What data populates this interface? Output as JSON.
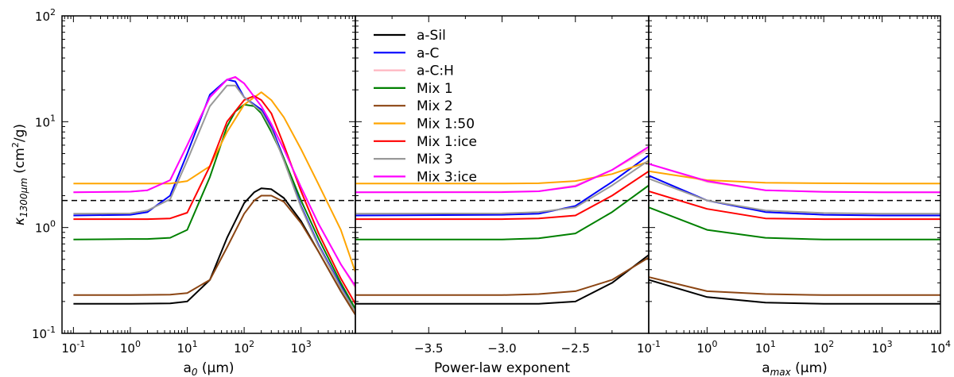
{
  "chart_data": [
    {
      "type": "line",
      "panel": "left",
      "xscale": "log",
      "yscale": "log",
      "xlim": [
        0.063,
        9000
      ],
      "ylim": [
        0.1,
        100
      ],
      "xlabel": "a",
      "xlabel_sub": "0",
      "xlabel_unit": " (μm)",
      "ylabel": "κ",
      "ylabel_sub": "1300μm",
      "ylabel_unit": " (cm",
      "ylabel_sup": "2",
      "ylabel_tail": "/g)",
      "xticks": [
        {
          "value": 0.1,
          "base": "10",
          "exp": "-1"
        },
        {
          "value": 1,
          "base": "10",
          "exp": "0"
        },
        {
          "value": 10,
          "base": "10",
          "exp": "1"
        },
        {
          "value": 100,
          "base": "10",
          "exp": "2"
        },
        {
          "value": 1000,
          "base": "10",
          "exp": "3"
        }
      ],
      "yticks": [
        {
          "value": 0.1,
          "base": "10",
          "exp": "-1"
        },
        {
          "value": 1,
          "base": "10",
          "exp": "0"
        },
        {
          "value": 10,
          "base": "10",
          "exp": "1"
        },
        {
          "value": 100,
          "base": "10",
          "exp": "2"
        }
      ],
      "reference_line": {
        "y": 1.8,
        "style": "dashed"
      },
      "series": [
        {
          "name": "a-Sil",
          "color": "#000000",
          "x": [
            0.1,
            1,
            5,
            10,
            25,
            50,
            100,
            150,
            200,
            300,
            500,
            1000,
            2000,
            5000,
            9000
          ],
          "y": [
            0.19,
            0.19,
            0.192,
            0.2,
            0.32,
            0.8,
            1.7,
            2.15,
            2.35,
            2.3,
            1.9,
            1.15,
            0.6,
            0.25,
            0.15
          ]
        },
        {
          "name": "a-C",
          "color": "#0000ff",
          "x": [
            0.1,
            1,
            2,
            5,
            10,
            25,
            50,
            70,
            100,
            200,
            300,
            500,
            1000,
            2000,
            5000,
            9000
          ],
          "y": [
            1.3,
            1.32,
            1.4,
            2.0,
            5.0,
            18.0,
            25.0,
            24.0,
            17.0,
            13.0,
            9.0,
            4.5,
            1.6,
            0.7,
            0.28,
            0.17
          ]
        },
        {
          "name": "a-C:H",
          "color": "#ffb6c1",
          "x": [
            0.1,
            1,
            2,
            5,
            10,
            25,
            50,
            70,
            100,
            200,
            300,
            500,
            1000,
            2000,
            5000,
            9000
          ],
          "y": [
            2.15,
            2.18,
            2.25,
            2.8,
            6.0,
            17.0,
            25.0,
            26.0,
            23.0,
            14.0,
            9.5,
            5.5,
            2.4,
            1.1,
            0.45,
            0.27
          ]
        },
        {
          "name": "Mix 1",
          "color": "#008000",
          "x": [
            0.1,
            1,
            2,
            5,
            10,
            25,
            50,
            70,
            100,
            150,
            200,
            300,
            500,
            1000,
            2000,
            5000,
            9000
          ],
          "y": [
            0.77,
            0.78,
            0.78,
            0.8,
            0.95,
            3.0,
            9.0,
            12.5,
            14.5,
            14.0,
            12.0,
            8.0,
            4.5,
            1.8,
            0.8,
            0.3,
            0.17
          ]
        },
        {
          "name": "Mix 2",
          "color": "#8b4513",
          "x": [
            0.1,
            1,
            5,
            10,
            25,
            50,
            100,
            150,
            200,
            300,
            500,
            1000,
            2000,
            5000,
            9000
          ],
          "y": [
            0.23,
            0.23,
            0.232,
            0.24,
            0.32,
            0.65,
            1.35,
            1.8,
            2.0,
            2.0,
            1.75,
            1.1,
            0.6,
            0.25,
            0.15
          ]
        },
        {
          "name": "Mix 1:50",
          "color": "#ffa500",
          "x": [
            0.1,
            1,
            2,
            5,
            10,
            25,
            50,
            100,
            200,
            300,
            500,
            1000,
            2000,
            5000,
            9000
          ],
          "y": [
            2.6,
            2.6,
            2.6,
            2.6,
            2.75,
            3.8,
            8.0,
            14.5,
            19.0,
            16.0,
            11.0,
            5.5,
            2.6,
            0.95,
            0.38
          ]
        },
        {
          "name": "Mix 1:ice",
          "color": "#ff0000",
          "x": [
            0.1,
            1,
            2,
            5,
            10,
            25,
            50,
            100,
            150,
            200,
            300,
            500,
            1000,
            2000,
            5000,
            9000
          ],
          "y": [
            1.2,
            1.2,
            1.2,
            1.22,
            1.38,
            3.8,
            10.0,
            16.0,
            17.5,
            16.0,
            12.0,
            6.0,
            2.2,
            0.9,
            0.33,
            0.19
          ]
        },
        {
          "name": "Mix 3",
          "color": "#999999",
          "x": [
            0.1,
            1,
            2,
            5,
            10,
            25,
            50,
            70,
            100,
            200,
            300,
            500,
            1000,
            2000,
            5000,
            9000
          ],
          "y": [
            1.35,
            1.36,
            1.45,
            1.85,
            4.3,
            14.0,
            22.0,
            22.0,
            17.0,
            12.5,
            8.5,
            4.3,
            1.55,
            0.68,
            0.27,
            0.16
          ]
        },
        {
          "name": "Mix 3:ice",
          "color": "#ff00ff",
          "x": [
            0.1,
            1,
            2,
            5,
            10,
            25,
            50,
            70,
            100,
            200,
            300,
            500,
            1000,
            2000,
            5000,
            9000
          ],
          "y": [
            2.15,
            2.18,
            2.25,
            2.8,
            6.0,
            17.0,
            25.0,
            26.5,
            23.0,
            14.0,
            9.5,
            5.5,
            2.4,
            1.1,
            0.45,
            0.28
          ]
        }
      ]
    },
    {
      "type": "line",
      "panel": "middle",
      "xscale": "linear",
      "yscale": "log",
      "xlim": [
        -4.0,
        -2.0
      ],
      "ylim": [
        0.1,
        100
      ],
      "xlabel": "Power-law exponent",
      "xticks": [
        {
          "value": -3.5,
          "label": "−3.5"
        },
        {
          "value": -3.0,
          "label": "−3.0"
        },
        {
          "value": -2.5,
          "label": "−2.5"
        }
      ],
      "reference_line": {
        "y": 1.8,
        "style": "dashed"
      },
      "legend": {
        "position": "top-left"
      },
      "series": [
        {
          "name": "a-Sil",
          "color": "#000000",
          "x": [
            -4.0,
            -3.0,
            -2.75,
            -2.5,
            -2.25,
            -2.0
          ],
          "y": [
            0.19,
            0.19,
            0.19,
            0.2,
            0.3,
            0.55
          ]
        },
        {
          "name": "a-C",
          "color": "#0000ff",
          "x": [
            -4.0,
            -3.0,
            -2.75,
            -2.5,
            -2.25,
            -2.0
          ],
          "y": [
            1.3,
            1.32,
            1.35,
            1.6,
            2.7,
            4.8
          ]
        },
        {
          "name": "a-C:H",
          "color": "#ffb6c1",
          "x": [
            -4.0,
            -3.0,
            -2.75,
            -2.5,
            -2.25,
            -2.0
          ],
          "y": [
            2.15,
            2.18,
            2.2,
            2.5,
            3.5,
            5.5
          ]
        },
        {
          "name": "Mix 1",
          "color": "#008000",
          "x": [
            -4.0,
            -3.0,
            -2.75,
            -2.5,
            -2.25,
            -2.0
          ],
          "y": [
            0.77,
            0.77,
            0.79,
            0.88,
            1.4,
            2.5
          ]
        },
        {
          "name": "Mix 2",
          "color": "#8b4513",
          "x": [
            -4.0,
            -3.0,
            -2.75,
            -2.5,
            -2.25,
            -2.0
          ],
          "y": [
            0.23,
            0.23,
            0.235,
            0.25,
            0.32,
            0.52
          ]
        },
        {
          "name": "Mix 1:50",
          "color": "#ffa500",
          "x": [
            -4.0,
            -3.0,
            -2.75,
            -2.5,
            -2.25,
            -2.0
          ],
          "y": [
            2.6,
            2.6,
            2.62,
            2.75,
            3.2,
            4.2
          ]
        },
        {
          "name": "Mix 1:ice",
          "color": "#ff0000",
          "x": [
            -4.0,
            -3.0,
            -2.75,
            -2.5,
            -2.25,
            -2.0
          ],
          "y": [
            1.2,
            1.2,
            1.22,
            1.3,
            2.0,
            3.4
          ]
        },
        {
          "name": "Mix 3",
          "color": "#999999",
          "x": [
            -4.0,
            -3.0,
            -2.75,
            -2.5,
            -2.25,
            -2.0
          ],
          "y": [
            1.35,
            1.36,
            1.4,
            1.55,
            2.5,
            4.3
          ]
        },
        {
          "name": "Mix 3:ice",
          "color": "#ff00ff",
          "x": [
            -4.0,
            -3.0,
            -2.75,
            -2.5,
            -2.25,
            -2.0
          ],
          "y": [
            2.15,
            2.16,
            2.2,
            2.45,
            3.5,
            5.8
          ]
        }
      ]
    },
    {
      "type": "line",
      "panel": "right",
      "xscale": "log",
      "yscale": "log",
      "xlim": [
        0.1,
        10000
      ],
      "ylim": [
        0.1,
        100
      ],
      "xlabel": "a",
      "xlabel_sub": "max",
      "xlabel_unit": " (μm)",
      "xticks": [
        {
          "value": 0.1,
          "base": "10",
          "exp": "-1"
        },
        {
          "value": 1,
          "base": "10",
          "exp": "0"
        },
        {
          "value": 10,
          "base": "10",
          "exp": "1"
        },
        {
          "value": 100,
          "base": "10",
          "exp": "2"
        },
        {
          "value": 1000,
          "base": "10",
          "exp": "3"
        },
        {
          "value": 10000,
          "base": "10",
          "exp": "4"
        }
      ],
      "reference_line": {
        "y": 1.8,
        "style": "dashed"
      },
      "series": [
        {
          "name": "a-Sil",
          "color": "#000000",
          "x": [
            0.1,
            1,
            10,
            100,
            1000,
            10000
          ],
          "y": [
            0.32,
            0.22,
            0.195,
            0.19,
            0.19,
            0.19
          ]
        },
        {
          "name": "a-C",
          "color": "#0000ff",
          "x": [
            0.1,
            1,
            10,
            100,
            1000,
            10000
          ],
          "y": [
            3.1,
            1.8,
            1.4,
            1.32,
            1.3,
            1.3
          ]
        },
        {
          "name": "a-C:H",
          "color": "#ffb6c1",
          "x": [
            0.1,
            1,
            10,
            100,
            1000,
            10000
          ],
          "y": [
            4.0,
            2.7,
            2.25,
            2.18,
            2.15,
            2.15
          ]
        },
        {
          "name": "Mix 1",
          "color": "#008000",
          "x": [
            0.1,
            1,
            10,
            100,
            1000,
            10000
          ],
          "y": [
            1.55,
            0.95,
            0.8,
            0.77,
            0.77,
            0.77
          ]
        },
        {
          "name": "Mix 2",
          "color": "#8b4513",
          "x": [
            0.1,
            1,
            10,
            100,
            1000,
            10000
          ],
          "y": [
            0.34,
            0.25,
            0.235,
            0.23,
            0.23,
            0.23
          ]
        },
        {
          "name": "Mix 1:50",
          "color": "#ffa500",
          "x": [
            0.1,
            1,
            10,
            100,
            1000,
            10000
          ],
          "y": [
            3.4,
            2.8,
            2.65,
            2.62,
            2.6,
            2.6
          ]
        },
        {
          "name": "Mix 1:ice",
          "color": "#ff0000",
          "x": [
            0.1,
            1,
            10,
            100,
            1000,
            10000
          ],
          "y": [
            2.2,
            1.5,
            1.22,
            1.2,
            1.2,
            1.2
          ]
        },
        {
          "name": "Mix 3",
          "color": "#999999",
          "x": [
            0.1,
            1,
            10,
            100,
            1000,
            10000
          ],
          "y": [
            2.9,
            1.8,
            1.45,
            1.37,
            1.35,
            1.35
          ]
        },
        {
          "name": "Mix 3:ice",
          "color": "#ff00ff",
          "x": [
            0.1,
            1,
            10,
            100,
            1000,
            10000
          ],
          "y": [
            4.0,
            2.75,
            2.25,
            2.17,
            2.15,
            2.15
          ]
        }
      ]
    }
  ]
}
